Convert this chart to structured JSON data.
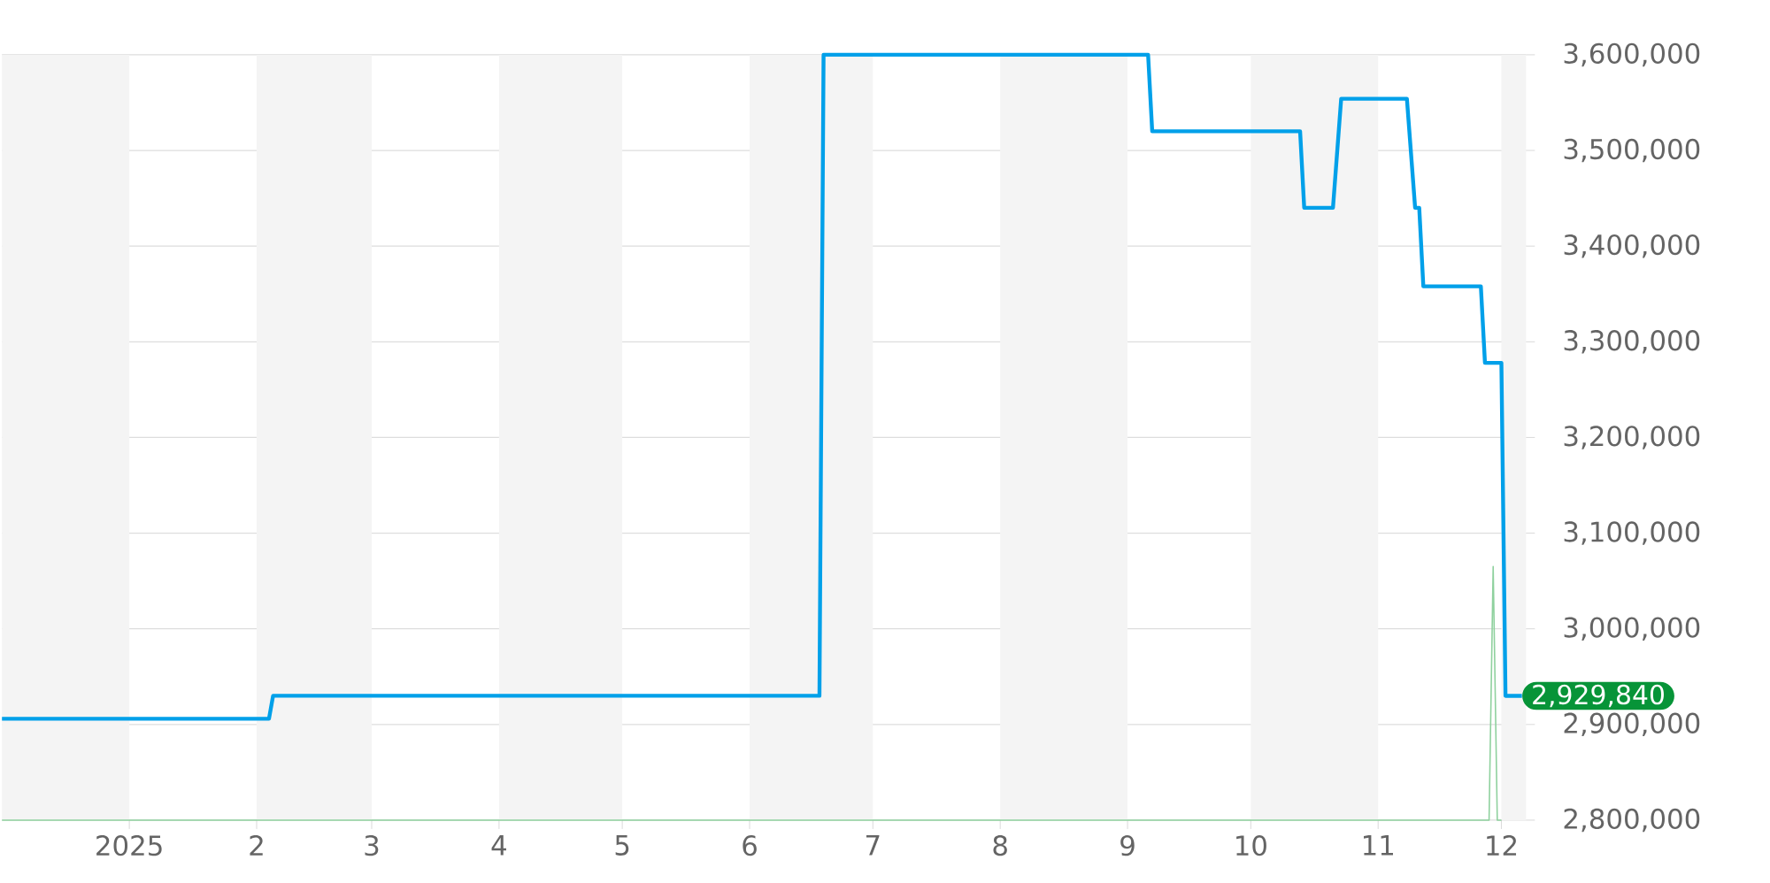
{
  "chart_data": {
    "type": "line",
    "xlim": [
      "2024-12-01",
      "2025-12-07"
    ],
    "xticks": [
      {
        "value": "2025-01-01",
        "label": "2025"
      },
      {
        "value": "2025-02-01",
        "label": "2"
      },
      {
        "value": "2025-03-01",
        "label": "3"
      },
      {
        "value": "2025-04-01",
        "label": "4"
      },
      {
        "value": "2025-05-01",
        "label": "5"
      },
      {
        "value": "2025-06-01",
        "label": "6"
      },
      {
        "value": "2025-07-01",
        "label": "7"
      },
      {
        "value": "2025-08-01",
        "label": "8"
      },
      {
        "value": "2025-09-01",
        "label": "9"
      },
      {
        "value": "2025-10-01",
        "label": "10"
      },
      {
        "value": "2025-11-01",
        "label": "11"
      },
      {
        "value": "2025-12-01",
        "label": "12"
      }
    ],
    "ylim": [
      2800000,
      3600000
    ],
    "yticks": [
      {
        "value": 2800000,
        "label": "2,800,000"
      },
      {
        "value": 2900000,
        "label": "2,900,000"
      },
      {
        "value": 3000000,
        "label": "3,000,000"
      },
      {
        "value": 3100000,
        "label": "3,100,000"
      },
      {
        "value": 3200000,
        "label": "3,200,000"
      },
      {
        "value": 3300000,
        "label": "3,300,000"
      },
      {
        "value": 3400000,
        "label": "3,400,000"
      },
      {
        "value": 3500000,
        "label": "3,500,000"
      },
      {
        "value": 3600000,
        "label": "3,600,000"
      }
    ],
    "grid": "y",
    "marker": "none",
    "line_style": "solid",
    "series": [
      {
        "color": "#00a0e9",
        "x": [
          "2024-12-01",
          "2025-02-04",
          "2025-02-05",
          "2025-06-18",
          "2025-06-19",
          "2025-09-06",
          "2025-09-07",
          "2025-10-13",
          "2025-10-14",
          "2025-10-21",
          "2025-10-23",
          "2025-11-08",
          "2025-11-10",
          "2025-11-11",
          "2025-11-12",
          "2025-11-26",
          "2025-11-27",
          "2025-12-01",
          "2025-12-02",
          "2025-12-06"
        ],
        "values": [
          2906000,
          2906000,
          2930000,
          2930000,
          3600000,
          3600000,
          3520000,
          3520000,
          3440000,
          3440000,
          3554000,
          3554000,
          3440000,
          3440000,
          3358000,
          3358000,
          3278000,
          3278000,
          2929840,
          2929840
        ]
      },
      {
        "color": "#8fd19e",
        "x": [
          "2024-12-01",
          "2025-11-28",
          "2025-11-29",
          "2025-11-30",
          "2025-12-01"
        ],
        "values": [
          2800000,
          2800000,
          3065000,
          2800000,
          2800000
        ]
      }
    ],
    "bands": [
      {
        "axis": "x",
        "from": "2024-12-01",
        "to": "2025-01-01",
        "color": "#f4f4f4"
      },
      {
        "axis": "x",
        "from": "2025-02-01",
        "to": "2025-03-01",
        "color": "#f4f4f4"
      },
      {
        "axis": "x",
        "from": "2025-04-01",
        "to": "2025-05-01",
        "color": "#f4f4f4"
      },
      {
        "axis": "x",
        "from": "2025-06-01",
        "to": "2025-07-01",
        "color": "#f4f4f4"
      },
      {
        "axis": "x",
        "from": "2025-08-01",
        "to": "2025-09-01",
        "color": "#f4f4f4"
      },
      {
        "axis": "x",
        "from": "2025-10-01",
        "to": "2025-11-01",
        "color": "#f4f4f4"
      },
      {
        "axis": "x",
        "from": "2025-12-01",
        "to": "2025-12-07",
        "color": "#f4f4f4"
      }
    ],
    "annotations": [
      {
        "text": "2,929,840",
        "x": "2025-12-06",
        "y": 2929840
      }
    ]
  }
}
